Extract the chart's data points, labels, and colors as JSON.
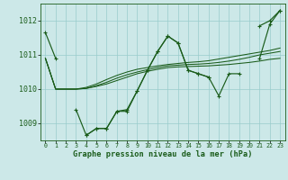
{
  "xlabel": "Graphe pression niveau de la mer (hPa)",
  "background_color": "#cce8e8",
  "grid_color": "#99cccc",
  "line_color": "#1a5c1a",
  "hours": [
    0,
    1,
    2,
    3,
    4,
    5,
    6,
    7,
    8,
    9,
    10,
    11,
    12,
    13,
    14,
    15,
    16,
    17,
    18,
    19,
    20,
    21,
    22,
    23
  ],
  "series_main": [
    1011.65,
    1010.9,
    null,
    null,
    1008.65,
    1008.85,
    1008.85,
    1009.35,
    1009.35,
    1009.95,
    1010.55,
    1011.1,
    1011.55,
    1011.35,
    1010.55,
    1010.45,
    1010.35,
    null,
    null,
    null,
    null,
    1011.85,
    1012.0,
    1012.3
  ],
  "series_alt": [
    null,
    null,
    null,
    1009.4,
    1008.65,
    1008.85,
    1008.85,
    1009.35,
    1009.4,
    1009.95,
    1010.55,
    1011.1,
    1011.55,
    1011.35,
    1010.55,
    1010.45,
    1010.35,
    1009.8,
    1010.45,
    1010.45,
    null,
    1010.9,
    1011.9,
    1012.3
  ],
  "series_smooth1": [
    1010.9,
    1010.0,
    1010.0,
    1010.0,
    1010.02,
    1010.08,
    1010.15,
    1010.25,
    1010.35,
    1010.45,
    1010.52,
    1010.58,
    1010.63,
    1010.65,
    1010.66,
    1010.67,
    1010.68,
    1010.7,
    1010.72,
    1010.75,
    1010.78,
    1010.82,
    1010.87,
    1010.9
  ],
  "series_smooth2": [
    1010.9,
    1010.0,
    1010.0,
    1010.0,
    1010.02,
    1010.1,
    1010.2,
    1010.32,
    1010.42,
    1010.5,
    1010.57,
    1010.63,
    1010.68,
    1010.7,
    1010.72,
    1010.73,
    1010.75,
    1010.78,
    1010.82,
    1010.87,
    1010.93,
    1011.0,
    1011.05,
    1011.1
  ],
  "series_smooth3": [
    1010.9,
    1010.0,
    1010.0,
    1010.0,
    1010.05,
    1010.15,
    1010.28,
    1010.4,
    1010.5,
    1010.58,
    1010.63,
    1010.68,
    1010.72,
    1010.75,
    1010.78,
    1010.8,
    1010.83,
    1010.88,
    1010.93,
    1010.98,
    1011.03,
    1011.08,
    1011.13,
    1011.2
  ],
  "ylim": [
    1008.5,
    1012.5
  ],
  "yticks": [
    1009,
    1010,
    1011,
    1012
  ],
  "xticks": [
    0,
    1,
    2,
    3,
    4,
    5,
    6,
    7,
    8,
    9,
    10,
    11,
    12,
    13,
    14,
    15,
    16,
    17,
    18,
    19,
    20,
    21,
    22,
    23
  ]
}
